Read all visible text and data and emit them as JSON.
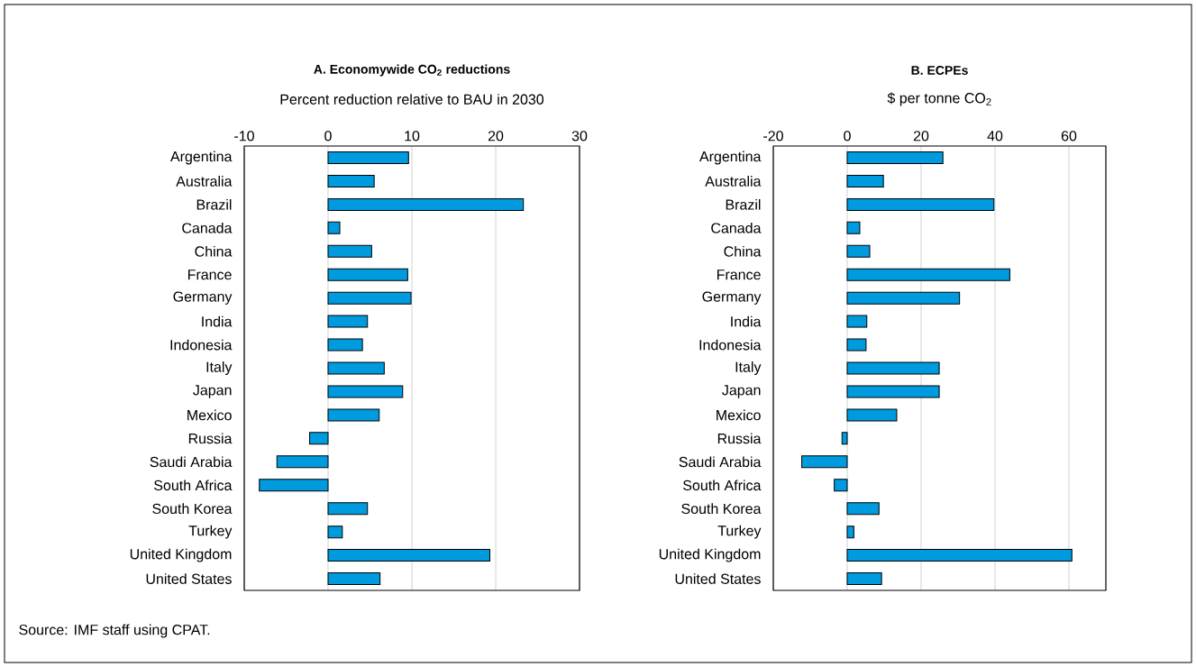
{
  "chart_data": [
    {
      "type": "bar",
      "orientation": "horizontal",
      "title": "**A. Economywide CO$_{2}$ reductions**",
      "xlabel": "Percent reduction relative to BAU in 2030",
      "categories": [
        "Argentina",
        "Australia",
        "Brazil",
        "Canada",
        "China",
        "France",
        "Germany",
        "India",
        "Indonesia",
        "Italy",
        "Japan",
        "Mexico",
        "Russia",
        "Saudi Arabia",
        "South Africa",
        "South Korea",
        "Turkey",
        "United Kingdom",
        "United States"
      ],
      "values": [
        9.6,
        5.5,
        23.3,
        1.4,
        5.2,
        9.5,
        9.9,
        4.7,
        4.1,
        6.7,
        8.9,
        6.1,
        -2.2,
        -6.1,
        -8.2,
        4.7,
        1.7,
        19.3,
        6.2
      ],
      "color": "#009ade",
      "xlim": [
        -10,
        30
      ],
      "xticks": [
        -10,
        0,
        10,
        20,
        30
      ],
      "grid": "x",
      "annotations": [
        "Source: IMF staff using CPAT."
      ]
    },
    {
      "type": "bar",
      "orientation": "horizontal",
      "title": "**B. ECPEs**",
      "xlabel": "$ per tonne CO$_{2}$",
      "categories": [
        "Argentina",
        "Australia",
        "Brazil",
        "Canada",
        "China",
        "France",
        "Germany",
        "India",
        "Indonesia",
        "Italy",
        "Japan",
        "Mexico",
        "Russia",
        "Saudi Arabia",
        "South Africa",
        "South Korea",
        "Turkey",
        "United Kingdom",
        "United States"
      ],
      "values": [
        25.9,
        9.8,
        39.7,
        3.4,
        6.1,
        44.0,
        30.4,
        5.3,
        5.1,
        24.9,
        24.9,
        13.4,
        -1.4,
        -12.3,
        -3.5,
        8.6,
        1.8,
        60.8,
        9.3
      ],
      "color": "#009ade",
      "xlim": [
        -20,
        70
      ],
      "xticks": [
        -20,
        0,
        20,
        40,
        60
      ],
      "grid": "x"
    }
  ]
}
